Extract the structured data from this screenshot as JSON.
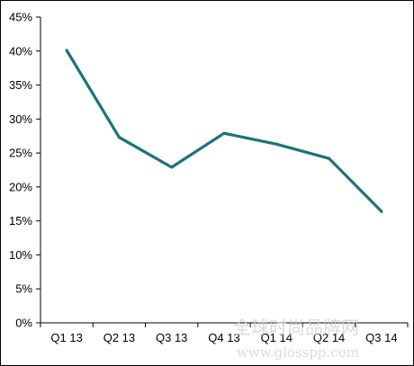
{
  "chart_data": {
    "type": "line",
    "categories": [
      "Q1 13",
      "Q2 13",
      "Q3 13",
      "Q4 13",
      "Q1 14",
      "Q2 14",
      "Q3 14"
    ],
    "series": [
      {
        "values": [
          40.1,
          27.3,
          22.9,
          27.9,
          26.3,
          24.2,
          16.4
        ]
      }
    ],
    "ylim": [
      0,
      45
    ],
    "yticks": [
      "0%",
      "5%",
      "10%",
      "15%",
      "20%",
      "25%",
      "30%",
      "35%",
      "40%",
      "45%"
    ],
    "title": "",
    "xlabel": "",
    "ylabel": "",
    "grid": false,
    "legend": "none",
    "line_color": "#1a7479"
  },
  "watermark": {
    "chinese": "全球时尚品牌网",
    "url": "www.glosspp.com"
  }
}
